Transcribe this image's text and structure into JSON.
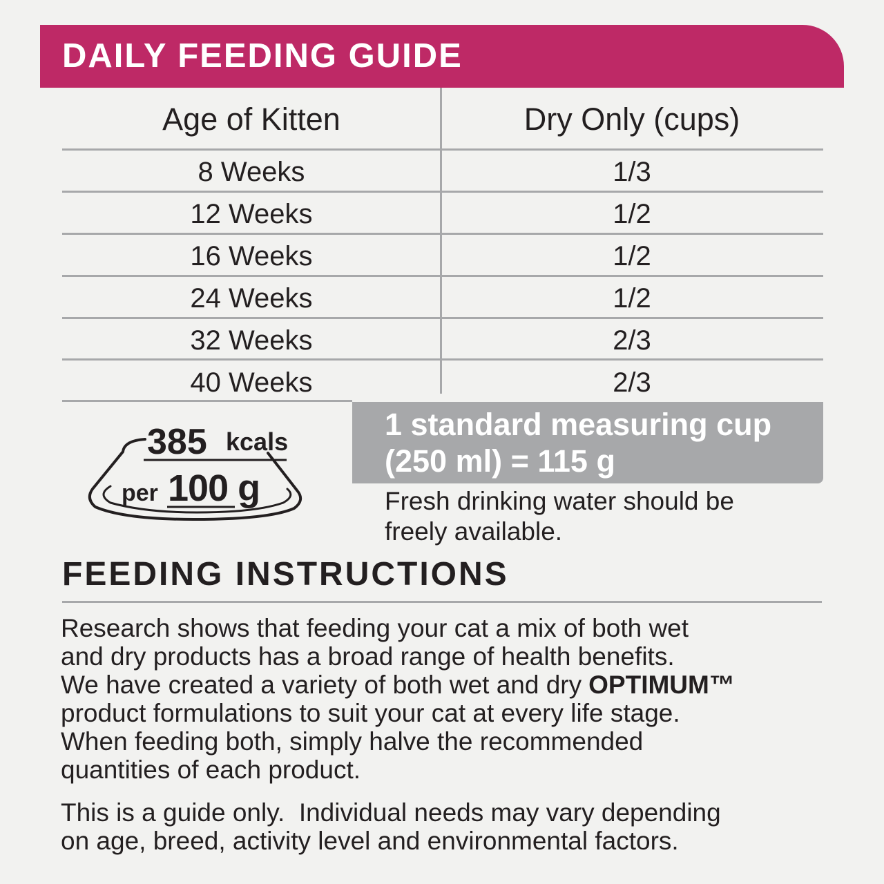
{
  "header": {
    "title": "DAILY FEEDING GUIDE"
  },
  "table": {
    "columns": [
      "Age of Kitten",
      "Dry Only (cups)"
    ],
    "rows": [
      [
        "8 Weeks",
        "1/3"
      ],
      [
        "12 Weeks",
        "1/2"
      ],
      [
        "16 Weeks",
        "1/2"
      ],
      [
        "24 Weeks",
        "1/2"
      ],
      [
        "32 Weeks",
        "2/3"
      ],
      [
        "40 Weeks",
        "2/3"
      ]
    ]
  },
  "energy": {
    "amount": "385",
    "unit": "kcals",
    "per": "per",
    "basis": "100 g"
  },
  "measure": {
    "lines": [
      "1 standard measuring cup",
      "(250 ml) = 115 g"
    ]
  },
  "water": {
    "lines": [
      "Fresh drinking water should be",
      "freely available."
    ]
  },
  "instructions": {
    "title": "FEEDING INSTRUCTIONS",
    "paragraphs": [
      {
        "lines": [
          "Research shows that feeding your cat a mix of both wet",
          "and dry products has a broad range of health benefits.",
          "We have created a variety of both wet and dry",
          "product formulations to suit your cat at every life stage.",
          "When feeding both, simply halve the recommended",
          "quantities of each product."
        ],
        "brand": "OPTIMUM™"
      },
      {
        "lines": [
          "This is a guide only.  Individual needs may vary depending",
          "on age, breed, activity level and environmental factors."
        ]
      }
    ]
  }
}
